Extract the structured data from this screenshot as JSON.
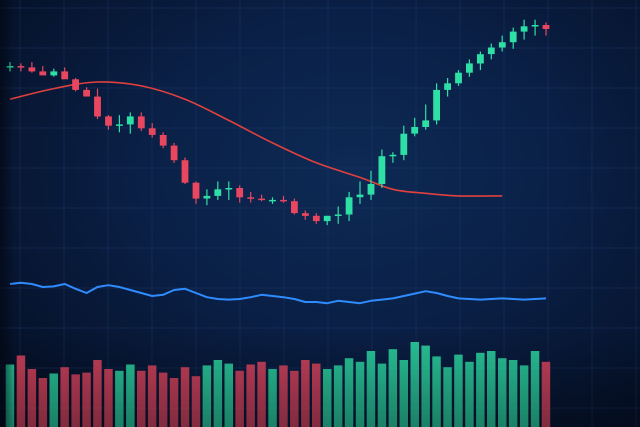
{
  "colors": {
    "background": "#0a1f45",
    "grid": "#1f3d6e",
    "up": "#2ee0a6",
    "down": "#e8475f",
    "moving_average": "#e0413f",
    "oscillator": "#2f8cff"
  },
  "chart_data": [
    {
      "type": "candlestick",
      "title": "",
      "xlabel": "",
      "ylabel": "",
      "grid": true,
      "legend": "none",
      "ylim": [
        0,
        100
      ],
      "x": [
        1,
        2,
        3,
        4,
        5,
        6,
        7,
        8,
        9,
        10,
        11,
        12,
        13,
        14,
        15,
        16,
        17,
        18,
        19,
        20,
        21,
        22,
        23,
        24,
        25,
        26,
        27,
        28,
        29,
        30,
        31,
        32,
        33,
        34,
        35,
        36,
        37,
        38,
        39,
        40,
        41,
        42,
        43,
        44,
        45,
        46,
        47,
        48,
        49,
        50
      ],
      "open": [
        84.0,
        84.5,
        84.0,
        82.5,
        81.0,
        82.5,
        79.5,
        75.5,
        73.0,
        65.5,
        62.0,
        62.5,
        65.5,
        61.0,
        58.5,
        54.5,
        49.0,
        40.5,
        34.5,
        35.5,
        38.0,
        38.5,
        35.0,
        34.5,
        34.0,
        34.0,
        33.5,
        29.0,
        28.0,
        26.0,
        28.0,
        28.5,
        35.0,
        36.0,
        40.0,
        50.5,
        51.0,
        59.0,
        61.5,
        64.0,
        75.5,
        78.0,
        82.0,
        85.5,
        89.0,
        91.5,
        93.5,
        97.5,
        99.5,
        100.0
      ],
      "high": [
        86.0,
        85.5,
        86.0,
        84.5,
        83.5,
        84.0,
        80.0,
        76.5,
        76.0,
        66.0,
        66.0,
        67.0,
        67.0,
        63.0,
        59.5,
        55.5,
        50.0,
        41.0,
        38.0,
        41.0,
        41.0,
        39.5,
        37.0,
        36.0,
        35.0,
        35.5,
        34.5,
        30.0,
        29.0,
        28.0,
        31.5,
        37.0,
        41.0,
        45.0,
        53.0,
        52.0,
        62.0,
        65.0,
        70.0,
        78.0,
        80.0,
        83.0,
        87.0,
        90.0,
        93.0,
        96.0,
        99.0,
        102.0,
        102.0,
        101.0
      ],
      "low": [
        82.5,
        82.5,
        82.0,
        82.0,
        80.5,
        80.5,
        75.0,
        73.0,
        64.5,
        60.5,
        59.5,
        59.0,
        60.0,
        57.5,
        53.5,
        48.0,
        40.0,
        32.5,
        32.0,
        34.0,
        34.0,
        33.0,
        33.0,
        33.5,
        32.5,
        33.0,
        28.5,
        26.5,
        25.0,
        24.5,
        25.0,
        26.0,
        32.5,
        34.0,
        38.5,
        48.0,
        49.0,
        58.0,
        60.5,
        62.5,
        73.0,
        77.0,
        80.5,
        83.0,
        87.0,
        90.0,
        91.0,
        94.5,
        96.0,
        96.0
      ],
      "close": [
        84.5,
        84.0,
        82.5,
        81.0,
        82.5,
        79.5,
        75.5,
        73.0,
        65.5,
        62.0,
        62.5,
        65.5,
        61.0,
        58.5,
        54.5,
        49.0,
        40.5,
        34.5,
        35.5,
        38.0,
        38.5,
        35.0,
        34.5,
        34.0,
        34.0,
        33.5,
        29.0,
        28.0,
        26.0,
        28.0,
        28.5,
        35.0,
        36.0,
        40.0,
        50.5,
        51.0,
        59.0,
        61.5,
        64.0,
        75.5,
        78.0,
        82.0,
        85.5,
        89.0,
        91.5,
        93.5,
        97.5,
        99.5,
        100.0,
        98.5
      ],
      "moving_average": {
        "x": [
          1,
          5,
          9,
          13,
          17,
          21,
          25,
          29,
          33,
          36,
          39,
          42,
          46
        ],
        "values": [
          72.0,
          76.0,
          78.5,
          77.0,
          72.0,
          64.0,
          55.5,
          48.0,
          42.5,
          38.0,
          36.5,
          35.5,
          35.5
        ]
      }
    },
    {
      "type": "line",
      "title": "",
      "ylim": [
        0,
        100
      ],
      "x": [
        1,
        2,
        3,
        4,
        5,
        6,
        7,
        8,
        9,
        10,
        11,
        12,
        13,
        14,
        15,
        16,
        17,
        18,
        19,
        20,
        21,
        22,
        23,
        24,
        25,
        26,
        27,
        28,
        29,
        30,
        31,
        32,
        33,
        34,
        35,
        36,
        37,
        38,
        39,
        40,
        41,
        42,
        43,
        44,
        45,
        46,
        47,
        48,
        49,
        50
      ],
      "values": [
        60,
        62,
        60,
        55,
        56,
        60,
        52,
        45,
        55,
        58,
        55,
        50,
        45,
        40,
        42,
        50,
        52,
        45,
        38,
        35,
        34,
        35,
        38,
        42,
        40,
        38,
        35,
        30,
        30,
        28,
        32,
        30,
        28,
        32,
        34,
        36,
        40,
        44,
        48,
        45,
        40,
        36,
        35,
        34,
        35,
        36,
        35,
        34,
        35,
        36
      ]
    },
    {
      "type": "bar",
      "title": "",
      "ylim": [
        0,
        100
      ],
      "x": [
        1,
        2,
        3,
        4,
        5,
        6,
        7,
        8,
        9,
        10,
        11,
        12,
        13,
        14,
        15,
        16,
        17,
        18,
        19,
        20,
        21,
        22,
        23,
        24,
        25,
        26,
        27,
        28,
        29,
        30,
        31,
        32,
        33,
        34,
        35,
        36,
        37,
        38,
        39,
        40,
        41,
        42,
        43,
        44,
        45,
        46,
        47,
        48,
        49,
        50
      ],
      "values": [
        45,
        55,
        40,
        30,
        35,
        42,
        34,
        36,
        50,
        40,
        38,
        45,
        38,
        44,
        36,
        30,
        42,
        32,
        44,
        50,
        46,
        38,
        45,
        48,
        40,
        44,
        38,
        50,
        46,
        40,
        44,
        52,
        48,
        60,
        46,
        62,
        50,
        70,
        66,
        54,
        42,
        56,
        48,
        58,
        60,
        52,
        50,
        44,
        60,
        48
      ]
    }
  ]
}
